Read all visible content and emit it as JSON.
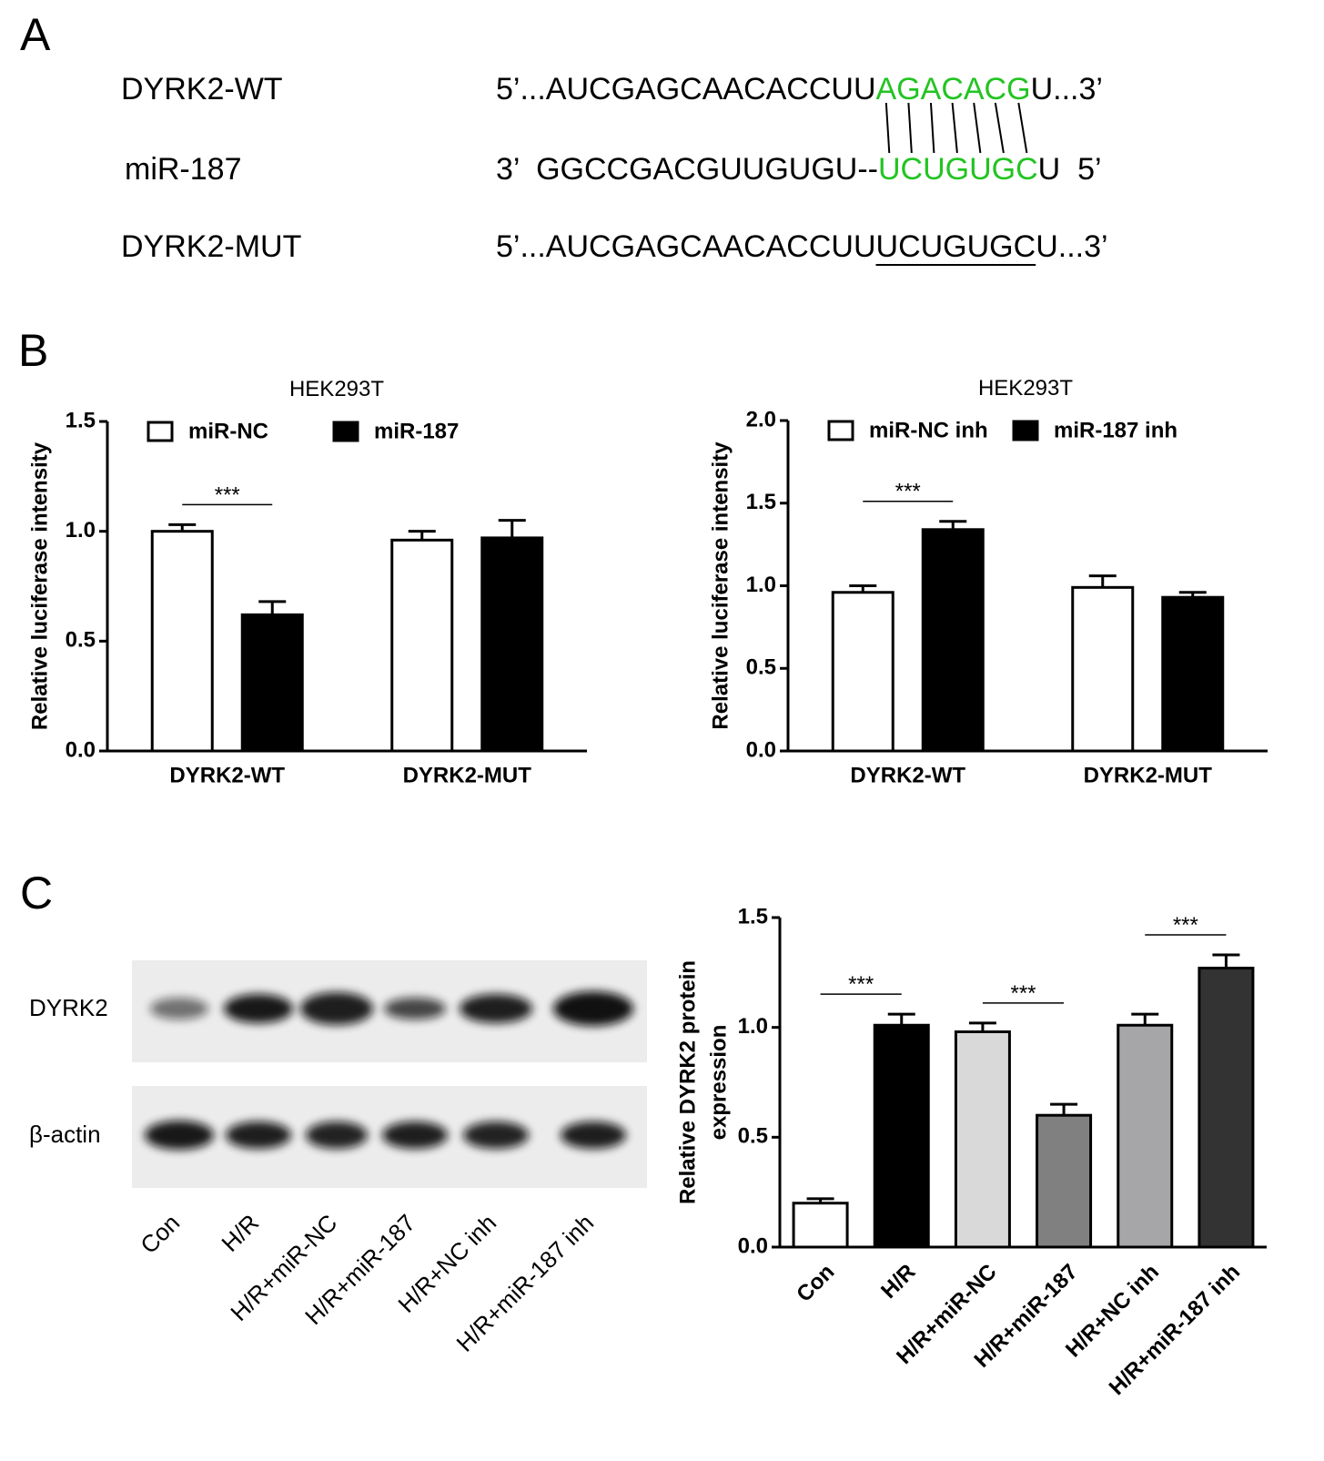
{
  "panel_labels": [
    "A",
    "B",
    "C"
  ],
  "sequences": {
    "highlight_color": "#22c422",
    "rows": [
      {
        "name": "DYRK2-WT",
        "parts": [
          "5’...AUCGAGCAACACCUU",
          "AGACACG",
          "U...3’"
        ]
      },
      {
        "name": "miR-187",
        "parts": [
          "3’  GGCCGACGUUGUGU--",
          "UCUGUGC",
          "U  5’"
        ]
      },
      {
        "name": "DYRK2-MUT",
        "parts": [
          "5’...AUCGAGCAACACCUU",
          "UCUGUGC",
          "U...3’"
        ]
      }
    ]
  },
  "blot": {
    "bands": [
      "DYRK2",
      "β-actin"
    ],
    "lanes": [
      "Con",
      "H/R",
      "H/R+miR-NC",
      "H/R+miR-187",
      "H/R+NC inh",
      "H/R+miR-187 inh"
    ]
  },
  "chart_data": [
    {
      "type": "bar",
      "title": "HEK293T",
      "ylabel": [
        "Relative luciferase intensity"
      ],
      "categories": [
        "DYRK2-WT",
        "DYRK2-MUT"
      ],
      "series": [
        {
          "name": "miR-NC",
          "color": "#ffffff",
          "values": [
            1.0,
            0.96
          ],
          "errors": [
            0.03,
            0.04
          ]
        },
        {
          "name": "miR-187",
          "color": "#000000",
          "values": [
            0.62,
            0.97
          ],
          "errors": [
            0.06,
            0.08
          ]
        }
      ],
      "ylim": [
        0,
        1.5
      ],
      "yticks": [
        {
          "value": 0,
          "label": "0.0"
        },
        {
          "value": 0.5,
          "label": "0.5"
        },
        {
          "value": 1,
          "label": "1.0"
        },
        {
          "value": 1.5,
          "label": "1.5"
        }
      ],
      "annotations": [
        "***"
      ]
    },
    {
      "type": "bar",
      "title": "HEK293T",
      "ylabel": [
        "Relative luciferase intensity"
      ],
      "categories": [
        "DYRK2-WT",
        "DYRK2-MUT"
      ],
      "series": [
        {
          "name": "miR-NC inh",
          "color": "#ffffff",
          "values": [
            0.96,
            0.99
          ],
          "errors": [
            0.04,
            0.07
          ]
        },
        {
          "name": "miR-187 inh",
          "color": "#000000",
          "values": [
            1.34,
            0.93
          ],
          "errors": [
            0.05,
            0.03
          ]
        }
      ],
      "ylim": [
        0,
        2
      ],
      "yticks": [
        {
          "value": 0,
          "label": "0.0"
        },
        {
          "value": 0.5,
          "label": "0.5"
        },
        {
          "value": 1,
          "label": "1.0"
        },
        {
          "value": 1.5,
          "label": "1.5"
        },
        {
          "value": 2,
          "label": "2.0"
        }
      ],
      "annotations": [
        "***"
      ]
    },
    {
      "type": "bar",
      "ylabel": [
        "Relative DYRK2 protein",
        "expression"
      ],
      "categories": [
        "Con",
        "H/R",
        "H/R+miR-NC",
        "H/R+miR-187",
        "H/R+NC inh",
        "H/R+miR-187 inh"
      ],
      "values": [
        0.2,
        1.01,
        0.98,
        0.6,
        1.01,
        1.27
      ],
      "errors": [
        0.02,
        0.05,
        0.04,
        0.05,
        0.05,
        0.06
      ],
      "colors": [
        "#ffffff",
        "#000000",
        "#d9d9d9",
        "#808080",
        "#a6a6a8",
        "#333333"
      ],
      "ylim": [
        0,
        1.5
      ],
      "yticks": [
        {
          "value": 0,
          "label": "0.0"
        },
        {
          "value": 0.5,
          "label": "0.5"
        },
        {
          "value": 1,
          "label": "1.0"
        },
        {
          "value": 1.5,
          "label": "1.5"
        }
      ],
      "annotations": [
        "***",
        "***",
        "***"
      ]
    }
  ]
}
